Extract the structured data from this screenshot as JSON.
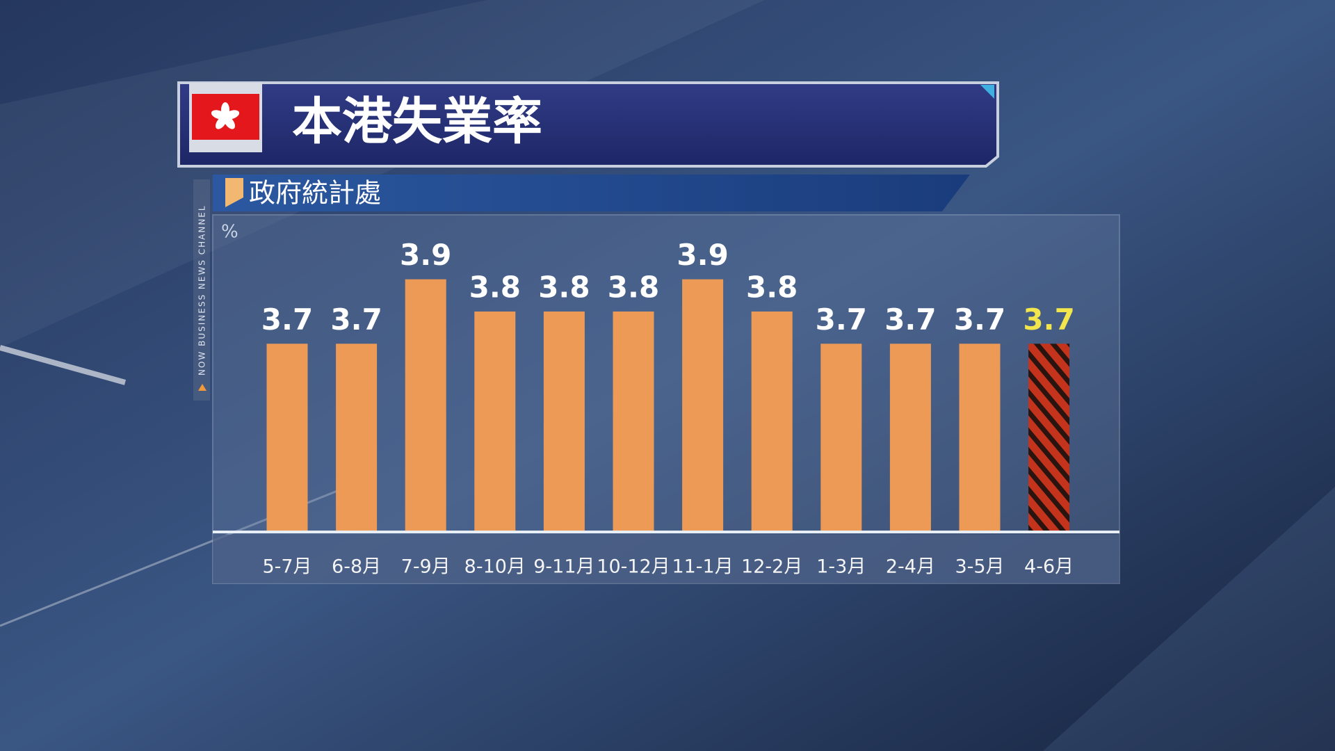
{
  "chart_data": {
    "type": "bar",
    "title": "本港失業率",
    "subtitle": "政府統計處",
    "unit": "%",
    "channel_tag": "NOW BUSINESS NEWS CHANNEL",
    "categories": [
      "5-7月",
      "6-8月",
      "7-9月",
      "8-10月",
      "9-11月",
      "10-12月",
      "11-1月",
      "12-2月",
      "1-3月",
      "2-4月",
      "3-5月",
      "4-6月"
    ],
    "values": [
      3.7,
      3.7,
      3.9,
      3.8,
      3.8,
      3.8,
      3.9,
      3.8,
      3.7,
      3.7,
      3.7,
      3.7
    ],
    "color": "#ec9a55",
    "highlight": {
      "index": 11,
      "color": "#c4331c",
      "label_color": "#f2e64c"
    },
    "ylim": [
      3.12,
      4.1
    ]
  }
}
